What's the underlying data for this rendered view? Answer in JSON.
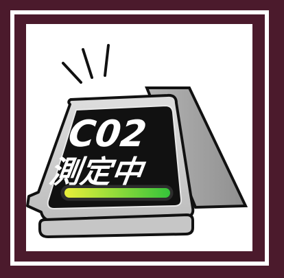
{
  "illustration": {
    "line1": "C02",
    "line2": "測定中"
  },
  "colors": {
    "frame": "#4b1a2c",
    "border": "#ffffff",
    "panel": "#ffffff",
    "screen": "#111111",
    "gauge_left": "#e9ef3a",
    "gauge_right": "#3fcf3d",
    "body": "#d3d3d3",
    "stand": "#9d9d9d"
  }
}
